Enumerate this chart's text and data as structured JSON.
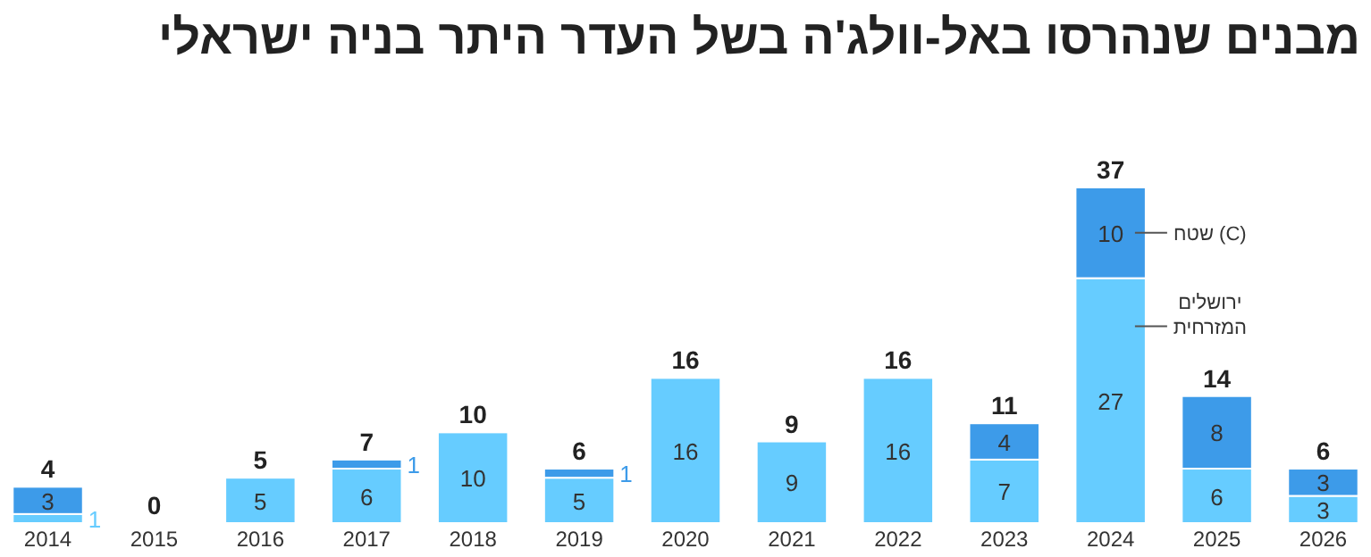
{
  "chart_data": {
    "type": "bar",
    "title": "מבנים שנהרסו באל-וולג'ה בשל העדר היתר בניה ישראלי",
    "stacked": true,
    "categories": [
      "2014",
      "2015",
      "2016",
      "2017",
      "2018",
      "2019",
      "2020",
      "2021",
      "2022",
      "2023",
      "2024",
      "2025",
      "2026"
    ],
    "series": [
      {
        "name": "ירושלים המזרחית",
        "color": "#66ccff",
        "values": [
          1,
          0,
          5,
          6,
          10,
          5,
          16,
          9,
          16,
          7,
          27,
          6,
          3
        ],
        "value_labels": [
          "1",
          null,
          "5",
          "6",
          "10",
          "5",
          "16",
          "9",
          "16",
          "7",
          "27",
          "6",
          "3"
        ]
      },
      {
        "name": "שטח (C)",
        "color": "#3d9be9",
        "values": [
          3,
          0,
          0,
          1,
          0,
          1,
          0,
          0,
          0,
          4,
          10,
          8,
          3
        ],
        "value_labels": [
          "3",
          null,
          null,
          "1",
          null,
          "1",
          null,
          null,
          null,
          "4",
          "10",
          "8",
          "3"
        ]
      }
    ],
    "totals": [
      "4",
      "0",
      "5",
      "7",
      "10",
      "6",
      "16",
      "9",
      "16",
      "11",
      "37",
      "14",
      "6"
    ],
    "legend": false
  }
}
